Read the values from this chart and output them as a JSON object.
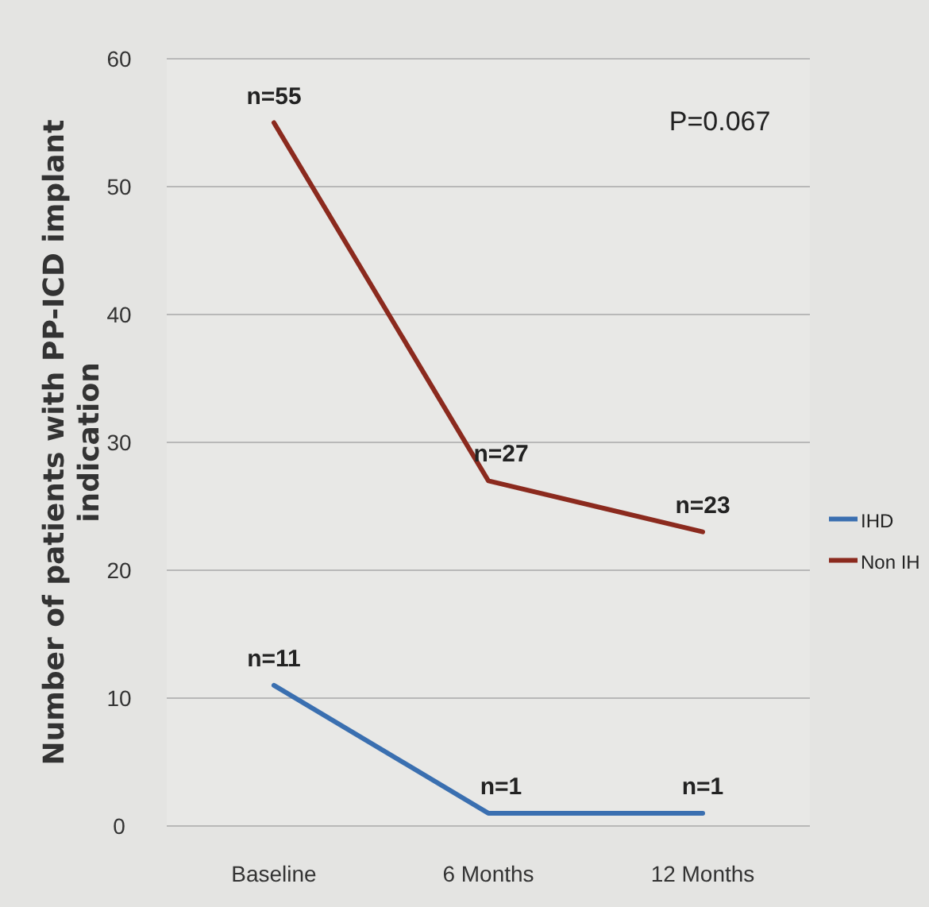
{
  "chart_data": {
    "type": "line",
    "ylabel": "Number of patients with PP-ICD implant indication",
    "categories": [
      "Baseline",
      "6 Months",
      "12 Months"
    ],
    "series": [
      {
        "name": "IHD",
        "color": "#3a6fb0",
        "values": [
          11,
          1,
          1
        ],
        "value_labels": [
          "n=11",
          "n=1",
          "n=1"
        ]
      },
      {
        "name": "Non IH",
        "color": "#8b2a1e",
        "values": [
          55,
          27,
          23
        ],
        "value_labels": [
          "n=55",
          "n=27",
          "n=23"
        ]
      }
    ],
    "ylim": [
      0,
      60
    ],
    "yticks": [
      0,
      10,
      20,
      30,
      40,
      50,
      60
    ],
    "grid": "y",
    "legend": "right",
    "marker": "none",
    "line_style": "solid",
    "annotations": [
      "P=0.067"
    ]
  }
}
